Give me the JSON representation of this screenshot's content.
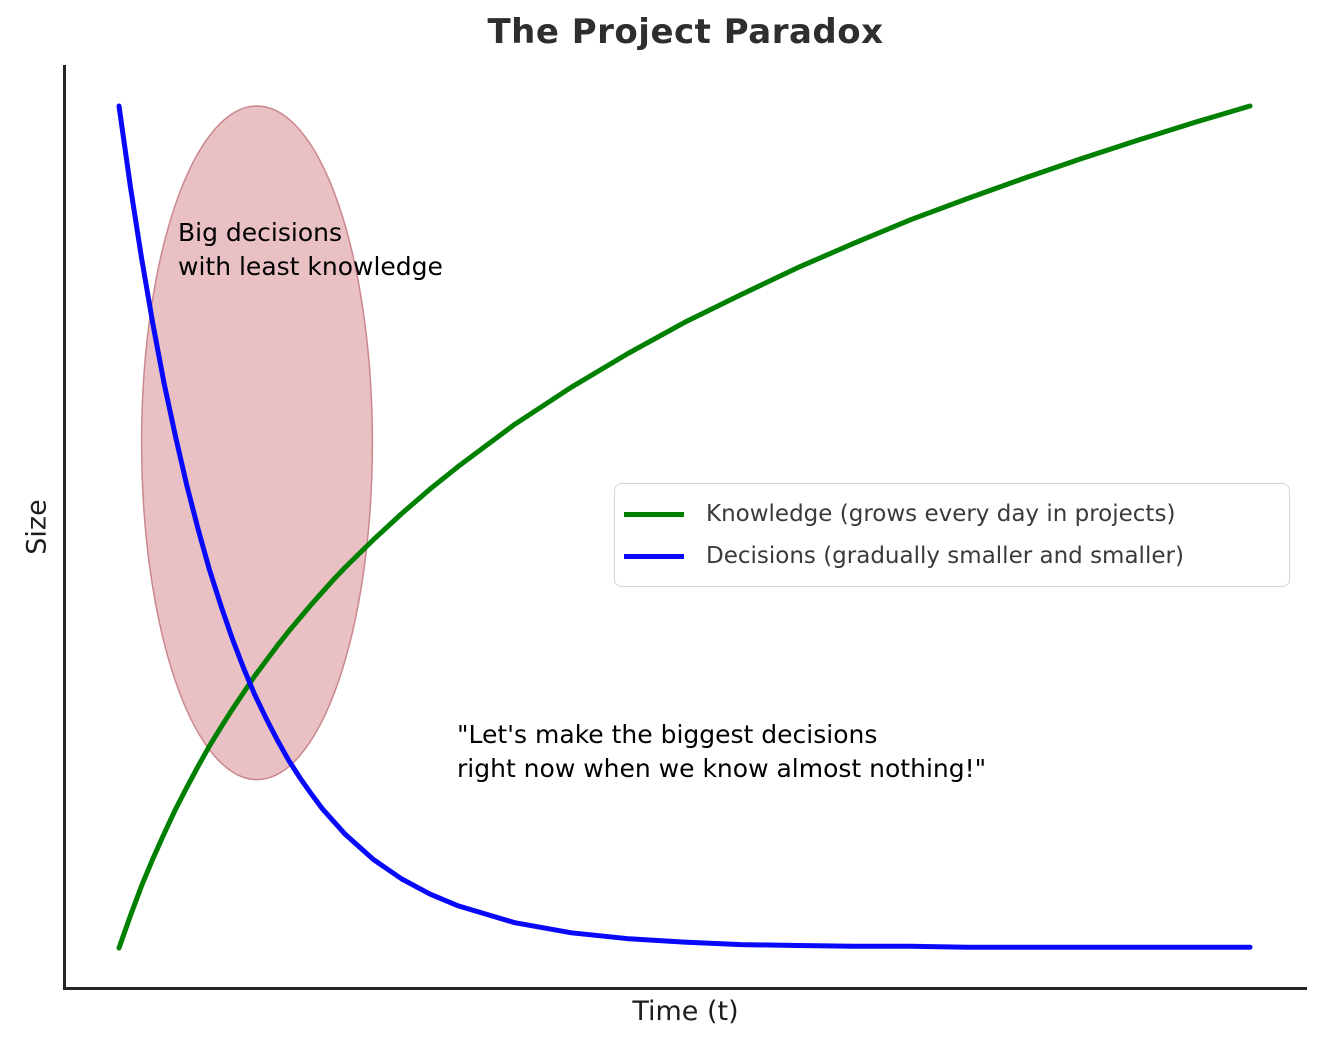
{
  "title": "The Project Paradox",
  "axes": {
    "xlabel": "Time (t)",
    "ylabel": "Size"
  },
  "annotations": {
    "ellipse_label": "Big decisions\nwith least knowledge",
    "quote": "\"Let's make the biggest decisions\nright now when we know almost nothing!\""
  },
  "colors": {
    "knowledge_line": "#008000",
    "decisions_line": "#0808fa",
    "ellipse_fill": "#e9c0c3",
    "ellipse_stroke": "#c9888d",
    "spine": "#262626",
    "title_text": "#2e2e2e",
    "legend_text": "#3a3a3a",
    "annotation_text": "#000000",
    "legend_border": "#d4d4d8"
  },
  "chart_data": {
    "type": "line",
    "title": "The Project Paradox",
    "xlabel": "Time (t)",
    "ylabel": "Size",
    "xlim": [
      0,
      10
    ],
    "ylim": [
      0,
      1.05
    ],
    "grid": false,
    "axis_ticks": "none",
    "legend_position": "center right",
    "x": [
      0,
      0.1,
      0.2,
      0.3,
      0.4,
      0.5,
      0.6,
      0.7,
      0.8,
      0.9,
      1.0,
      1.1,
      1.2,
      1.3,
      1.4,
      1.5,
      1.6,
      1.7,
      1.8,
      1.9,
      2.0,
      2.25,
      2.5,
      2.75,
      3,
      3.5,
      4,
      4.5,
      5,
      5.5,
      6,
      6.5,
      7,
      7.5,
      8,
      8.5,
      9,
      9.5,
      10
    ],
    "series": [
      {
        "name": "Knowledge (grows every day in projects)",
        "color": "#008000",
        "shape": "logarithmic growth",
        "values": [
          0.0,
          0.038,
          0.074,
          0.106,
          0.136,
          0.165,
          0.191,
          0.216,
          0.24,
          0.262,
          0.283,
          0.303,
          0.323,
          0.341,
          0.359,
          0.376,
          0.392,
          0.408,
          0.423,
          0.438,
          0.452,
          0.485,
          0.516,
          0.545,
          0.572,
          0.622,
          0.666,
          0.706,
          0.743,
          0.776,
          0.808,
          0.837,
          0.865,
          0.89,
          0.914,
          0.937,
          0.959,
          0.98,
          1.0
        ]
      },
      {
        "name": "Decisions (gradually smaller and smaller)",
        "color": "#0808fa",
        "shape": "exponential decay",
        "values": [
          1.0,
          0.905,
          0.819,
          0.741,
          0.67,
          0.607,
          0.549,
          0.497,
          0.449,
          0.407,
          0.368,
          0.333,
          0.301,
          0.273,
          0.247,
          0.223,
          0.202,
          0.183,
          0.165,
          0.15,
          0.135,
          0.105,
          0.082,
          0.064,
          0.05,
          0.03,
          0.018,
          0.011,
          0.007,
          0.004,
          0.003,
          0.002,
          0.002,
          0.001,
          0.001,
          0.001,
          0.001,
          0.001,
          0.001
        ]
      }
    ],
    "highlight_ellipse": {
      "center_x": 1.22,
      "center_y": 0.6,
      "radius_x": 1.02,
      "radius_y": 0.4
    }
  },
  "legend": {
    "items": [
      {
        "label": "Knowledge (grows every day in projects)"
      },
      {
        "label": "Decisions (gradually smaller and smaller)"
      }
    ]
  }
}
